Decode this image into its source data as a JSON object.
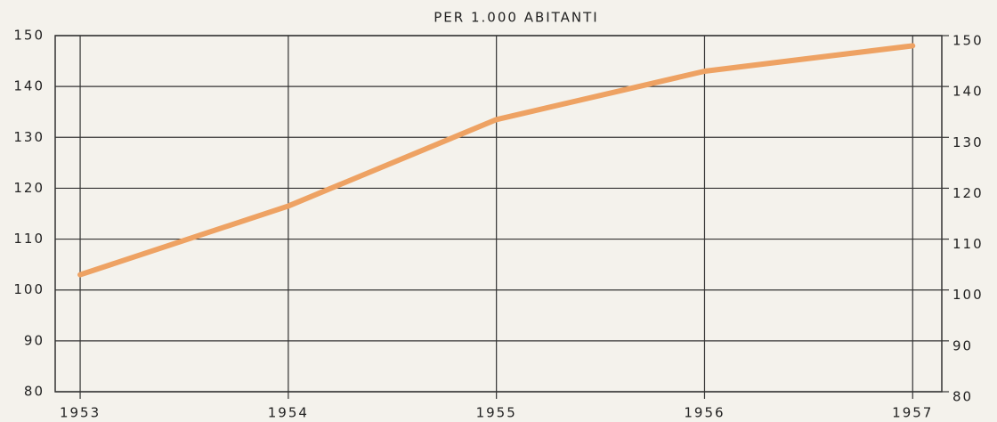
{
  "chart_data": {
    "type": "line",
    "title": "PER 1.000 ABITANTI",
    "x": [
      1953,
      1954,
      1955,
      1956,
      1957
    ],
    "xlim": [
      1952.88,
      1957.14
    ],
    "xticks": [
      1953,
      1954,
      1955,
      1956,
      1957
    ],
    "series": [
      {
        "name": "PER 1.000 ABITANTI",
        "color": "#eea263",
        "values": [
          103,
          116.5,
          133.5,
          143,
          148
        ]
      }
    ],
    "ylim": [
      80,
      150
    ],
    "yticks": [
      80,
      90,
      100,
      110,
      120,
      130,
      140,
      150
    ],
    "y2lim": [
      80,
      150
    ],
    "y2ticks": [
      80,
      90,
      100,
      110,
      120,
      130,
      140,
      150
    ],
    "grid": true
  }
}
